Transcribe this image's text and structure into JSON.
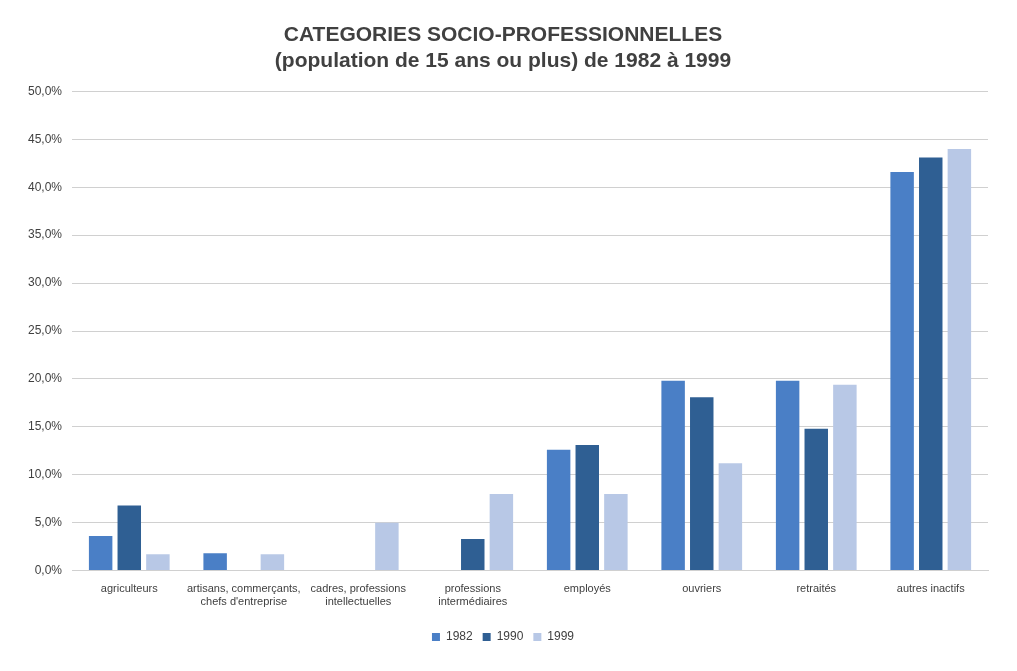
{
  "chart_data": {
    "type": "bar",
    "title": "CATEGORIES SOCIO-PROFESSIONNELLES\n(population de 15 ans ou plus) de 1982 à 1999",
    "categories": [
      "agriculteurs",
      "artisans, commerçants, chefs d'entreprise",
      "cadres, professions intellectuelles",
      "professions intermédiaires",
      "employés",
      "ouvriers",
      "retraités",
      "autres inactifs"
    ],
    "series": [
      {
        "name": "1982",
        "color": "#4a7fc6",
        "values": [
          3.6,
          1.8,
          null,
          null,
          12.6,
          19.8,
          19.8,
          41.6
        ]
      },
      {
        "name": "1990",
        "color": "#2f5f93",
        "values": [
          6.8,
          null,
          null,
          3.3,
          13.1,
          18.1,
          14.8,
          43.1
        ]
      },
      {
        "name": "1999",
        "color": "#b8c8e6",
        "values": [
          1.7,
          1.7,
          5.0,
          8.0,
          8.0,
          11.2,
          19.4,
          44.0
        ]
      }
    ],
    "ylim": [
      0,
      50
    ],
    "yticks": [
      {
        "value": 0,
        "label": "0,0%"
      },
      {
        "value": 5,
        "label": "5,0%"
      },
      {
        "value": 10,
        "label": "10,0%"
      },
      {
        "value": 15,
        "label": "15,0%"
      },
      {
        "value": 20,
        "label": "20,0%"
      },
      {
        "value": 25,
        "label": "25,0%"
      },
      {
        "value": 30,
        "label": "30,0%"
      },
      {
        "value": 35,
        "label": "35,0%"
      },
      {
        "value": 40,
        "label": "40,0%"
      },
      {
        "value": 45,
        "label": "45,0%"
      },
      {
        "value": 50,
        "label": "50,0%"
      }
    ],
    "grid": "y",
    "legend": "bottom"
  }
}
